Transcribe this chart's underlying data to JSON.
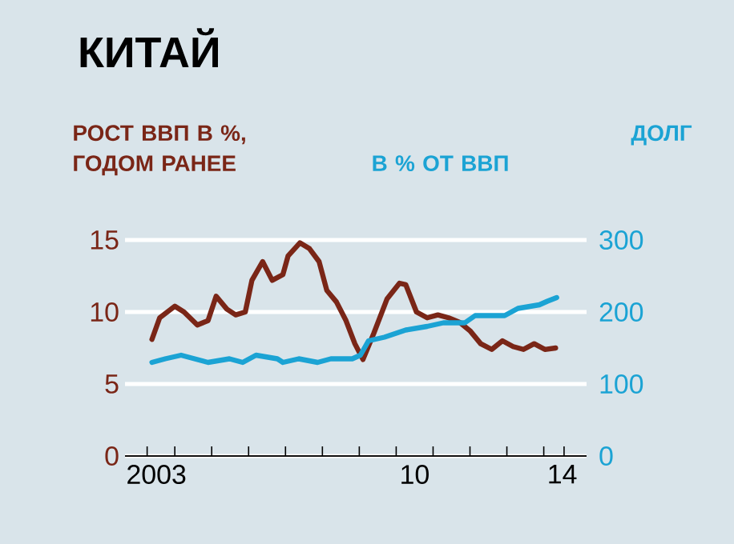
{
  "chart_data": {
    "type": "line",
    "title": "КИТАЙ",
    "ylabel": "РОСТ ВВП В %,\nГОДОМ РАНЕЕ",
    "y2label": "ДОЛГ\nВ % ОТ ВВП",
    "xlim": [
      2002.15,
      2014.66
    ],
    "xticks": [
      {
        "value": 2002.75,
        "label": null
      },
      {
        "value": 2003,
        "label": "2003"
      },
      {
        "value": 2003.5,
        "label": null
      },
      {
        "value": 2004.5,
        "label": null
      },
      {
        "value": 2005.5,
        "label": null
      },
      {
        "value": 2006.5,
        "label": null
      },
      {
        "value": 2007.5,
        "label": null
      },
      {
        "value": 2008.5,
        "label": null
      },
      {
        "value": 2009.5,
        "label": null
      },
      {
        "value": 2010,
        "label": "10"
      },
      {
        "value": 2010.5,
        "label": null
      },
      {
        "value": 2011.5,
        "label": null
      },
      {
        "value": 2012.5,
        "label": null
      },
      {
        "value": 2013.5,
        "label": null
      },
      {
        "value": 2014,
        "label": "14"
      },
      {
        "value": 2014.05,
        "label": null
      }
    ],
    "ylim": [
      0,
      15
    ],
    "yticks": [
      0,
      5,
      10,
      15
    ],
    "y2lim": [
      0,
      300
    ],
    "y2ticks": [
      0,
      100,
      200,
      300
    ],
    "grid": "y",
    "line_style": "solid",
    "marker": "none",
    "series": [
      {
        "color": "#7a2617",
        "x": [
          2002.88,
          2003.09,
          2003.5,
          2003.75,
          2004.11,
          2004.4,
          2004.62,
          2004.91,
          2005.15,
          2005.41,
          2005.59,
          2005.88,
          2006.14,
          2006.43,
          2006.57,
          2006.89,
          2007.15,
          2007.41,
          2007.62,
          2007.88,
          2008.14,
          2008.38,
          2008.6,
          2008.89,
          2009.25,
          2009.59,
          2009.76,
          2010.05,
          2010.34,
          2010.63,
          2010.92,
          2011.21,
          2011.5,
          2011.79,
          2012.09,
          2012.38,
          2012.67,
          2012.95,
          2013.24,
          2013.53,
          2013.82
        ],
        "values": [
          8.1,
          9.6,
          10.4,
          10.0,
          9.1,
          9.4,
          11.1,
          10.2,
          9.8,
          10.0,
          12.2,
          13.5,
          12.2,
          12.6,
          13.9,
          14.8,
          14.4,
          13.5,
          11.5,
          10.7,
          9.4,
          7.8,
          6.7,
          8.5,
          10.9,
          12.0,
          11.9,
          10.0,
          9.6,
          9.8,
          9.6,
          9.3,
          8.7,
          7.8,
          7.4,
          8.0,
          7.6,
          7.4,
          7.8,
          7.4,
          7.5
        ]
      },
      {
        "color": "#1ba3d4",
        "axis": "y2",
        "x": [
          2002.88,
          2003.24,
          2003.67,
          2004.4,
          2004.98,
          2005.34,
          2005.7,
          2006.28,
          2006.43,
          2006.86,
          2007.37,
          2007.73,
          2008.31,
          2008.53,
          2008.75,
          2009.18,
          2009.76,
          2010.34,
          2010.78,
          2011.36,
          2011.64,
          2012.22,
          2012.44,
          2012.8,
          2013.38,
          2013.6,
          2013.85
        ],
        "values": [
          130,
          135,
          140,
          130,
          135,
          130,
          140,
          135,
          130,
          135,
          130,
          135,
          135,
          140,
          160,
          165,
          175,
          180,
          185,
          185,
          195,
          195,
          195,
          205,
          210,
          215,
          220
        ]
      }
    ]
  }
}
